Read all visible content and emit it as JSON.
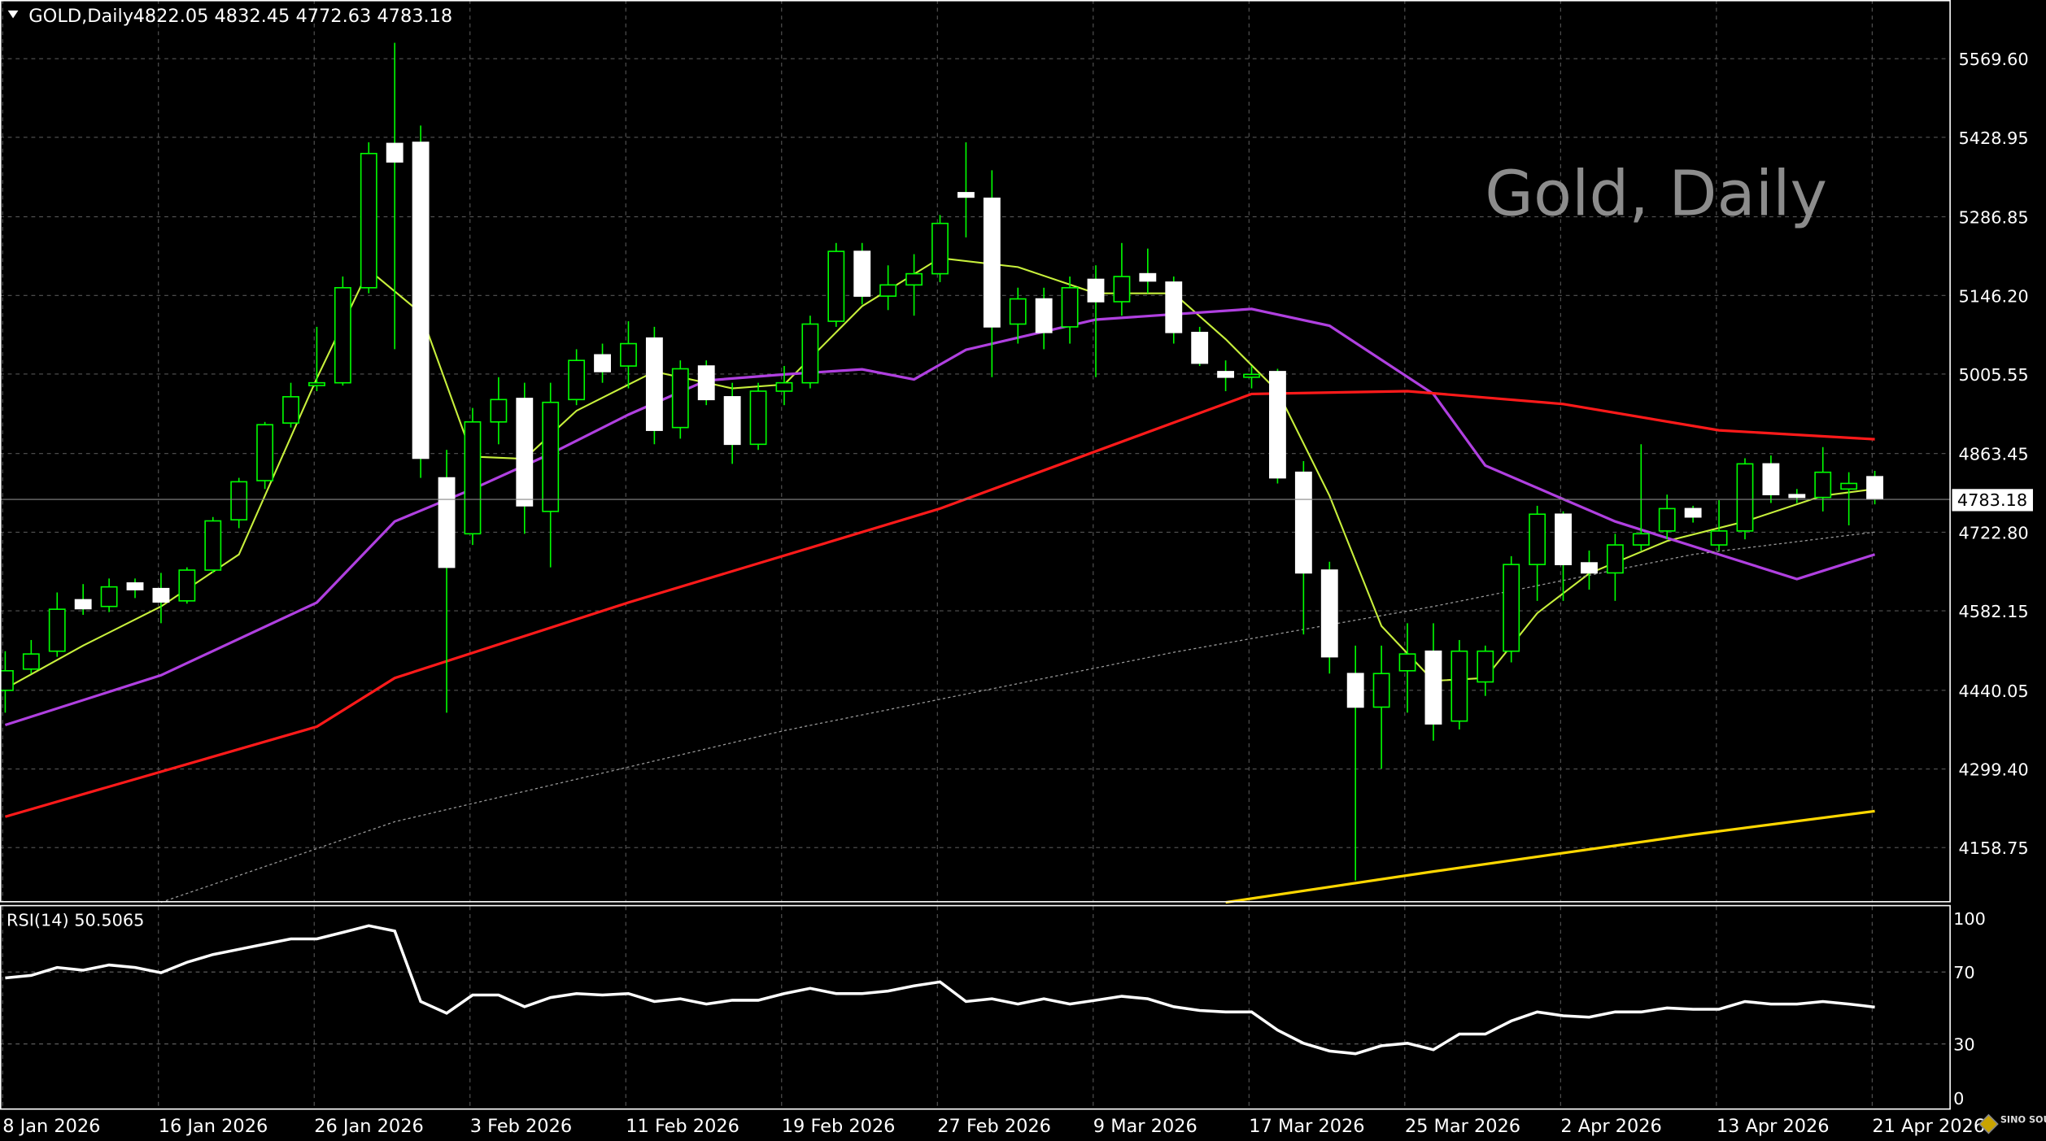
{
  "header": {
    "symbol_timeframe": "GOLD,Daily",
    "ohlc": "4822.05 4832.45 4772.63 4783.18"
  },
  "watermark": "Gold, Daily",
  "current_price": "4783.18",
  "rsi_label": "RSI(14) 50.5065",
  "logo": "SINO SOUND 漢聲集團",
  "colors": {
    "background": "#000000",
    "bull": "#00ff00",
    "bear": "#ffffff",
    "ma_fast": "#c8f03c",
    "ma_mid": "#b040e0",
    "ma_slow": "#ff1a1a",
    "ma_long": "#999999",
    "ma_200": "#ffd700",
    "rsi": "#ffffff"
  },
  "chart_data": {
    "type": "candlestick",
    "y_ticks": [
      "5569.60",
      "5428.95",
      "5286.85",
      "5146.20",
      "5005.55",
      "4863.45",
      "4722.80",
      "4582.15",
      "4440.05",
      "4299.40",
      "4158.75"
    ],
    "ylim": [
      4060,
      5674
    ],
    "x_labels": [
      {
        "i": 0,
        "label": "8 Jan 2026"
      },
      {
        "i": 6,
        "label": "16 Jan 2026"
      },
      {
        "i": 12,
        "label": "26 Jan 2026"
      },
      {
        "i": 18,
        "label": "3 Feb 2026"
      },
      {
        "i": 24,
        "label": "11 Feb 2026"
      },
      {
        "i": 30,
        "label": "19 Feb 2026"
      },
      {
        "i": 36,
        "label": "27 Feb 2026"
      },
      {
        "i": 42,
        "label": "9 Mar 2026"
      },
      {
        "i": 48,
        "label": "17 Mar 2026"
      },
      {
        "i": 54,
        "label": "25 Mar 2026"
      },
      {
        "i": 60,
        "label": "2 Apr 2026"
      },
      {
        "i": 66,
        "label": "13 Apr 2026"
      },
      {
        "i": 72,
        "label": "21 Apr 2026"
      }
    ],
    "ohlc": [
      [
        4440,
        4510,
        4400,
        4475
      ],
      [
        4478,
        4530,
        4470,
        4505
      ],
      [
        4510,
        4615,
        4500,
        4585
      ],
      [
        4602,
        4630,
        4575,
        4586
      ],
      [
        4590,
        4640,
        4580,
        4625
      ],
      [
        4632,
        4640,
        4605,
        4620
      ],
      [
        4622,
        4650,
        4560,
        4598
      ],
      [
        4600,
        4660,
        4595,
        4655
      ],
      [
        4655,
        4750,
        4650,
        4743
      ],
      [
        4745,
        4820,
        4730,
        4813
      ],
      [
        4815,
        4920,
        4800,
        4915
      ],
      [
        4918,
        4990,
        4910,
        4965
      ],
      [
        4985,
        5090,
        4975,
        4990
      ],
      [
        4990,
        5180,
        4985,
        5160
      ],
      [
        5160,
        5420,
        5150,
        5400
      ],
      [
        5418,
        5598,
        5050,
        5385
      ],
      [
        5420,
        5450,
        4820,
        4855
      ],
      [
        4820,
        4870,
        4400,
        4660
      ],
      [
        4720,
        4945,
        4700,
        4920
      ],
      [
        4920,
        5000,
        4880,
        4960
      ],
      [
        4962,
        4990,
        4720,
        4770
      ],
      [
        4760,
        4990,
        4660,
        4955
      ],
      [
        4960,
        5050,
        4950,
        5030
      ],
      [
        5040,
        5060,
        4990,
        5010
      ],
      [
        5020,
        5100,
        4980,
        5060
      ],
      [
        5070,
        5090,
        4880,
        4905
      ],
      [
        4910,
        5030,
        4890,
        5015
      ],
      [
        5020,
        5030,
        4950,
        4960
      ],
      [
        4965,
        4990,
        4845,
        4880
      ],
      [
        4880,
        4990,
        4870,
        4975
      ],
      [
        4975,
        5020,
        4950,
        4990
      ],
      [
        4990,
        5110,
        4980,
        5095
      ],
      [
        5100,
        5240,
        5090,
        5225
      ],
      [
        5225,
        5240,
        5130,
        5145
      ],
      [
        5145,
        5200,
        5120,
        5165
      ],
      [
        5165,
        5220,
        5110,
        5185
      ],
      [
        5185,
        5290,
        5170,
        5275
      ],
      [
        5330,
        5420,
        5250,
        5322
      ],
      [
        5320,
        5370,
        5000,
        5090
      ],
      [
        5095,
        5160,
        5060,
        5140
      ],
      [
        5140,
        5160,
        5050,
        5080
      ],
      [
        5090,
        5180,
        5060,
        5160
      ],
      [
        5175,
        5200,
        5000,
        5135
      ],
      [
        5135,
        5240,
        5110,
        5180
      ],
      [
        5185,
        5230,
        5150,
        5172
      ],
      [
        5170,
        5180,
        5060,
        5080
      ],
      [
        5080,
        5090,
        5020,
        5025
      ],
      [
        5010,
        5030,
        4975,
        5000
      ],
      [
        5000,
        5020,
        4980,
        5005
      ],
      [
        5010,
        5015,
        4810,
        4820
      ],
      [
        4830,
        4850,
        4540,
        4650
      ],
      [
        4655,
        4670,
        4470,
        4500
      ],
      [
        4470,
        4520,
        4100,
        4410
      ],
      [
        4410,
        4520,
        4300,
        4470
      ],
      [
        4475,
        4560,
        4400,
        4505
      ],
      [
        4510,
        4560,
        4350,
        4380
      ],
      [
        4385,
        4530,
        4370,
        4510
      ],
      [
        4455,
        4520,
        4430,
        4510
      ],
      [
        4510,
        4680,
        4490,
        4665
      ],
      [
        4665,
        4770,
        4600,
        4755
      ],
      [
        4755,
        4760,
        4600,
        4665
      ],
      [
        4668,
        4690,
        4620,
        4650
      ],
      [
        4650,
        4720,
        4600,
        4700
      ],
      [
        4700,
        4880,
        4690,
        4720
      ],
      [
        4725,
        4790,
        4710,
        4765
      ],
      [
        4765,
        4770,
        4740,
        4750
      ],
      [
        4700,
        4780,
        4690,
        4725
      ],
      [
        4725,
        4855,
        4710,
        4845
      ],
      [
        4845,
        4860,
        4775,
        4790
      ],
      [
        4790,
        4800,
        4775,
        4785
      ],
      [
        4785,
        4875,
        4760,
        4830
      ],
      [
        4800,
        4830,
        4735,
        4810
      ],
      [
        4822.05,
        4832.45,
        4772.63,
        4783.18
      ]
    ],
    "lines": {
      "ma_fast": [
        [
          0,
          4443
        ],
        [
          3,
          4520
        ],
        [
          6,
          4590
        ],
        [
          9,
          4683
        ],
        [
          12,
          4998
        ],
        [
          14,
          5192
        ],
        [
          16,
          5115
        ],
        [
          18,
          4858
        ],
        [
          20,
          4854
        ],
        [
          22,
          4940
        ],
        [
          25,
          5010
        ],
        [
          28,
          4980
        ],
        [
          30,
          4987
        ],
        [
          33,
          5127
        ],
        [
          36,
          5213
        ],
        [
          39,
          5197
        ],
        [
          42,
          5150
        ],
        [
          45,
          5150
        ],
        [
          47,
          5068
        ],
        [
          49,
          4975
        ],
        [
          51,
          4788
        ],
        [
          53,
          4555
        ],
        [
          55,
          4457
        ],
        [
          57,
          4462
        ],
        [
          59,
          4578
        ],
        [
          61,
          4649
        ],
        [
          64,
          4707
        ],
        [
          67,
          4742
        ],
        [
          70,
          4788
        ],
        [
          72,
          4800
        ]
      ],
      "ma_mid": [
        [
          0,
          4378
        ],
        [
          6,
          4467
        ],
        [
          12,
          4597
        ],
        [
          15,
          4742
        ],
        [
          18,
          4800
        ],
        [
          21,
          4863
        ],
        [
          24,
          4933
        ],
        [
          27,
          4994
        ],
        [
          30,
          5005
        ],
        [
          33,
          5014
        ],
        [
          35,
          4996
        ],
        [
          37,
          5049
        ],
        [
          42,
          5103
        ],
        [
          48,
          5122
        ],
        [
          51,
          5092
        ],
        [
          55,
          4970
        ],
        [
          57,
          4842
        ],
        [
          62,
          4742
        ],
        [
          66,
          4683
        ],
        [
          69,
          4639
        ],
        [
          72,
          4683
        ]
      ],
      "ma_slow": [
        [
          0,
          4214
        ],
        [
          12,
          4375
        ],
        [
          15,
          4462
        ],
        [
          24,
          4597
        ],
        [
          36,
          4765
        ],
        [
          48,
          4970
        ],
        [
          54,
          4975
        ],
        [
          60,
          4952
        ],
        [
          66,
          4905
        ],
        [
          72,
          4889
        ]
      ],
      "ma_long": [
        [
          6,
          4060
        ],
        [
          15,
          4205
        ],
        [
          30,
          4368
        ],
        [
          45,
          4508
        ],
        [
          55,
          4590
        ],
        [
          65,
          4683
        ],
        [
          72,
          4723
        ]
      ],
      "ma_200": [
        [
          47,
          4060
        ],
        [
          55,
          4116
        ],
        [
          65,
          4182
        ],
        [
          72,
          4224
        ]
      ]
    },
    "rsi": {
      "ticks": [
        "100",
        "70",
        "30",
        "0"
      ],
      "ylim": [
        0,
        100
      ],
      "values": [
        66.7,
        68.1,
        72.5,
        71,
        73.9,
        72.5,
        69.6,
        75.4,
        79.7,
        82.6,
        85.5,
        88.4,
        88.4,
        92,
        95.7,
        92.8,
        53.6,
        47.1,
        57.2,
        57.2,
        50.7,
        55.8,
        58,
        57.2,
        58,
        53.6,
        55.1,
        52.2,
        54.3,
        54.3,
        58,
        60.9,
        58,
        58,
        59.4,
        62.3,
        64.5,
        53.6,
        55.1,
        52.2,
        55.1,
        52.2,
        54.3,
        56.5,
        55.1,
        50.7,
        48.6,
        47.8,
        47.8,
        37.7,
        30.4,
        26.1,
        24.6,
        29,
        30.4,
        26.8,
        35.5,
        35.5,
        42.8,
        47.8,
        45.7,
        44.9,
        47.8,
        47.8,
        50,
        49.3,
        49.3,
        53.6,
        52.2,
        52.2,
        53.6,
        52.2,
        50.5
      ]
    }
  }
}
